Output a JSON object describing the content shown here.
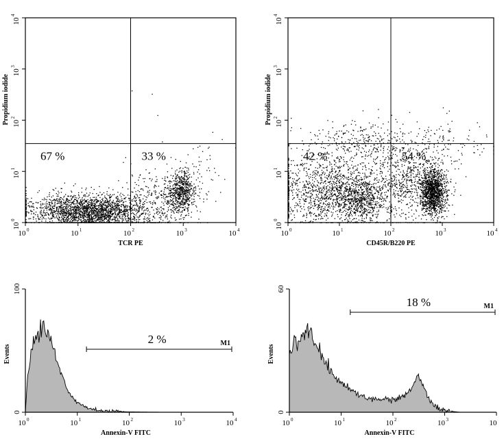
{
  "chart_data": [
    {
      "type": "scatter",
      "panel": "top-left",
      "xlabel": "TCR PE",
      "ylabel": "Propidium iodide",
      "x_scale": "log",
      "y_scale": "log",
      "xlim": [
        1,
        10000
      ],
      "ylim": [
        1,
        10000
      ],
      "x_ticks": [
        "10",
        "10",
        "10",
        "10",
        "10"
      ],
      "x_tick_exponents": [
        "0",
        "1",
        "2",
        "3",
        "4"
      ],
      "y_ticks": [
        "10",
        "10",
        "10",
        "10",
        "10"
      ],
      "y_tick_exponents": [
        "0",
        "1",
        "2",
        "3",
        "4"
      ],
      "quadrant_gates": {
        "x": 100,
        "y": 35
      },
      "quadrant_labels": [
        {
          "text": "67 %",
          "x": 3,
          "y": 20
        },
        {
          "text": "33 %",
          "x": 210,
          "y": 20
        }
      ],
      "populations": [
        {
          "center": [
            25,
            1.6
          ],
          "spread": [
            0.45,
            0.16
          ],
          "count": 1500
        },
        {
          "center": [
            6,
            1.8
          ],
          "spread": [
            0.5,
            0.18
          ],
          "count": 700
        },
        {
          "center": [
            900,
            4
          ],
          "spread": [
            0.14,
            0.2
          ],
          "count": 600
        },
        {
          "center": [
            300,
            2.5
          ],
          "spread": [
            0.35,
            0.3
          ],
          "count": 350
        },
        {
          "center": [
            2000,
            10
          ],
          "spread": [
            0.35,
            0.3
          ],
          "count": 60
        },
        {
          "center": [
            100,
            300
          ],
          "spread": [
            0.5,
            0.3
          ],
          "count": 3
        }
      ]
    },
    {
      "type": "scatter",
      "panel": "top-right",
      "xlabel": "CD45R/B220 PE",
      "ylabel": "Propidium iodide",
      "x_scale": "log",
      "y_scale": "log",
      "xlim": [
        1,
        10000
      ],
      "ylim": [
        1,
        10000
      ],
      "x_ticks": [
        "10",
        "10",
        "10",
        "10",
        "10"
      ],
      "x_tick_exponents": [
        "0",
        "1",
        "2",
        "3",
        "4"
      ],
      "y_ticks": [
        "10",
        "10",
        "10",
        "10",
        "10"
      ],
      "y_tick_exponents": [
        "0",
        "1",
        "2",
        "3",
        "4"
      ],
      "quadrant_gates": {
        "x": 100,
        "y": 35
      },
      "quadrant_labels": [
        {
          "text": "42 %",
          "x": 3,
          "y": 22
        },
        {
          "text": "54 %",
          "x": 210,
          "y": 22
        }
      ],
      "populations": [
        {
          "center": [
            6,
            4
          ],
          "spread": [
            0.55,
            0.35
          ],
          "count": 1300
        },
        {
          "center": [
            25,
            3
          ],
          "spread": [
            0.2,
            0.2
          ],
          "count": 500
        },
        {
          "center": [
            650,
            4
          ],
          "spread": [
            0.12,
            0.22
          ],
          "count": 1300
        },
        {
          "center": [
            200,
            6
          ],
          "spread": [
            0.4,
            0.4
          ],
          "count": 700
        },
        {
          "center": [
            30,
            35
          ],
          "spread": [
            0.6,
            0.22
          ],
          "count": 350
        },
        {
          "center": [
            1500,
            40
          ],
          "spread": [
            0.4,
            0.3
          ],
          "count": 80
        }
      ]
    },
    {
      "type": "area",
      "panel": "bottom-left",
      "xlabel": "Annexin-V FITC",
      "ylabel": "Events",
      "x_scale": "log",
      "xlim": [
        1,
        10000
      ],
      "ylim": [
        0,
        100
      ],
      "x_ticks": [
        "10",
        "10",
        "10",
        "10",
        "10"
      ],
      "x_tick_exponents": [
        "0",
        "1",
        "2",
        "3",
        "4"
      ],
      "y_ticks": [
        "0",
        "100"
      ],
      "marker": {
        "name": "M1",
        "start": 15,
        "end": 10000,
        "percent": "2 %"
      },
      "x": [
        1,
        1.1,
        1.25,
        1.4,
        1.6,
        1.8,
        2,
        2.2,
        2.5,
        2.8,
        3.2,
        3.6,
        4,
        4.5,
        5,
        6,
        7,
        8,
        10,
        12,
        15,
        20,
        30,
        50,
        100,
        200,
        500,
        1000,
        10000
      ],
      "values": [
        0,
        30,
        45,
        52,
        60,
        66,
        69,
        70,
        67,
        63,
        58,
        50,
        42,
        36,
        30,
        22,
        16,
        12,
        8,
        6,
        4,
        2.5,
        1.2,
        0.6,
        0.3,
        0.15,
        0.05,
        0,
        0
      ]
    },
    {
      "type": "area",
      "panel": "bottom-right",
      "xlabel": "Annexin-V FITC",
      "ylabel": "Events",
      "x_scale": "log",
      "xlim": [
        1,
        10000
      ],
      "ylim": [
        0,
        60
      ],
      "x_ticks": [
        "10",
        "10",
        "10",
        "10",
        "10"
      ],
      "x_tick_exponents": [
        "0",
        "1",
        "2",
        "3",
        ""
      ],
      "y_ticks": [
        "0",
        "60"
      ],
      "marker": {
        "name": "M1",
        "start": 15,
        "end": 10000,
        "percent": "18 %"
      },
      "x": [
        1,
        1.2,
        1.5,
        1.8,
        2.2,
        2.6,
        3,
        3.5,
        4,
        5,
        6,
        8,
        10,
        15,
        20,
        30,
        50,
        80,
        100,
        150,
        200,
        250,
        300,
        350,
        400,
        500,
        700,
        1000,
        2000,
        10000
      ],
      "values": [
        28,
        33,
        36,
        38,
        40,
        39,
        35,
        32,
        28,
        24,
        21,
        17,
        14,
        11,
        9,
        7,
        6,
        6,
        5.5,
        7,
        10,
        14,
        17,
        16,
        12,
        6,
        2.5,
        0.8,
        0,
        0
      ]
    }
  ]
}
